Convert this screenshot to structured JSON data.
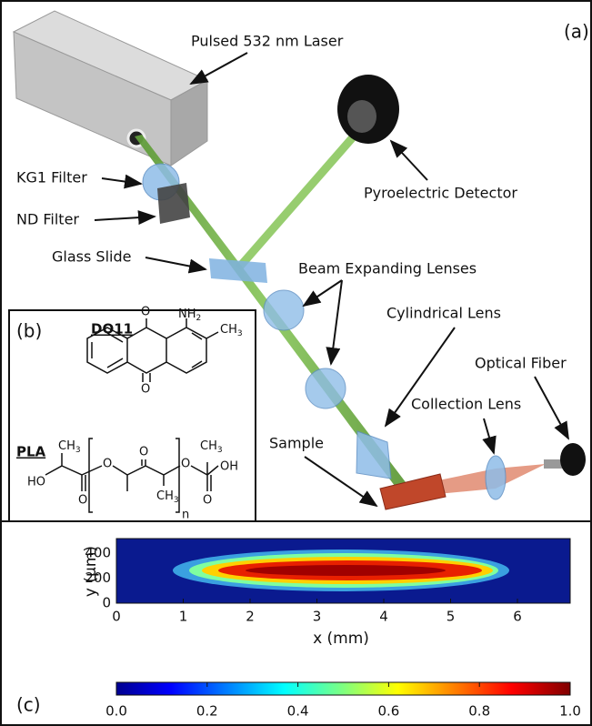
{
  "panel_a": {
    "label": "(a)",
    "laser": "Pulsed 532 nm Laser",
    "detector": "Pyroelectric Detector",
    "kg1_filter": "KG1 Filter",
    "nd_filter": "ND Filter",
    "glass_slide": "Glass Slide",
    "expanding_lenses": "Beam Expanding Lenses",
    "cylindrical_lens": "Cylindrical Lens",
    "collection_lens": "Collection Lens",
    "optical_fiber": "Optical Fiber",
    "sample": "Sample"
  },
  "panel_b": {
    "label": "(b)",
    "do11": {
      "name": "DO11",
      "nh": "NH",
      "nh_sub": "2",
      "ch": "CH",
      "ch_sub": "3",
      "oxygen": "O"
    },
    "pla": {
      "name": "PLA",
      "ho": "HO",
      "oh": "OH",
      "ch": "CH",
      "ch_sub": "3",
      "oxygen": "O",
      "repeat": "n"
    }
  },
  "panel_c": {
    "label": "(c)",
    "y_label": "y (μm)",
    "x_label": "x (mm)",
    "xticks": [
      "0",
      "1",
      "2",
      "3",
      "4",
      "5",
      "6"
    ],
    "yticks": [
      "400",
      "200",
      "0"
    ],
    "colorbar_ticks": [
      "0.0",
      "0.2",
      "0.4",
      "0.6",
      "0.8",
      "1.0"
    ]
  }
}
